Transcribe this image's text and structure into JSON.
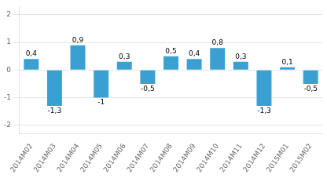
{
  "chart_data": {
    "type": "bar",
    "categories": [
      "2014M02",
      "2014M03",
      "2014M04",
      "2014M05",
      "2014M06",
      "2014M07",
      "2014M08",
      "2014M09",
      "2014M10",
      "2014M11",
      "2014M12",
      "2015M01",
      "2015M02"
    ],
    "values": [
      0.4,
      -1.3,
      0.9,
      -1.0,
      0.3,
      -0.5,
      0.5,
      0.4,
      0.8,
      0.3,
      -1.3,
      0.1,
      -0.5
    ],
    "value_labels": [
      "0,4",
      "-1,3",
      "0,9",
      "-1",
      "0,3",
      "-0,5",
      "0,5",
      "0,4",
      "0,8",
      "0,3",
      "-1,3",
      "0,1",
      "-0,5"
    ],
    "data_labels": true,
    "color": "#3aa0d2",
    "ylim": [
      -2.3,
      2.3
    ],
    "yticks": [
      -2,
      -1,
      0,
      1,
      2
    ],
    "grid": true
  }
}
